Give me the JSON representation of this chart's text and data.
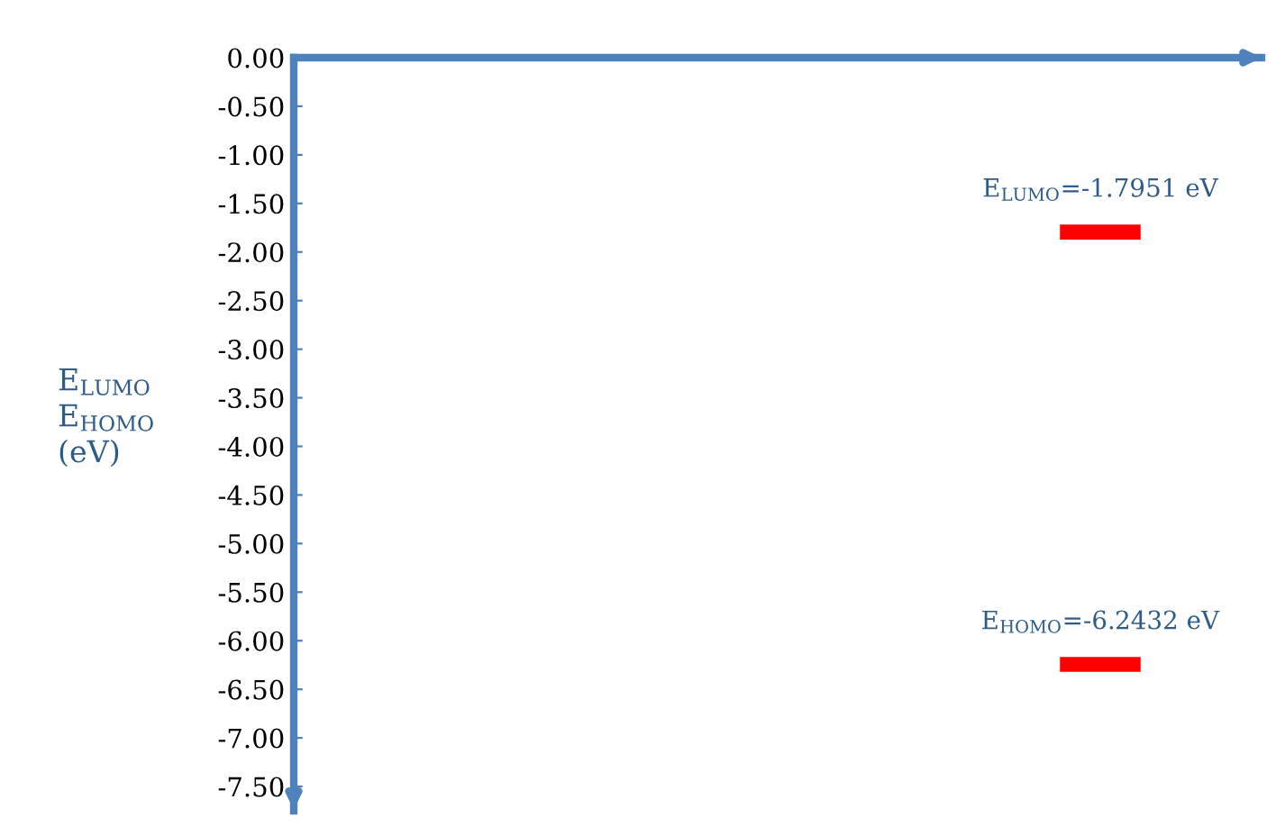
{
  "chart_data": {
    "type": "line",
    "ylabel": "E$_{LUMO}$\nE$_{HOMO}$\n(eV)",
    "categories": [
      null,
      null,
      null,
      null,
      null,
      null,
      null,
      null,
      null,
      null,
      null,
      null
    ],
    "series": [
      {
        "color": "#ff0000",
        "values": [
          null,
          null,
          null,
          null,
          null,
          null,
          null,
          null,
          null,
          -1.7951,
          -1.7951,
          null
        ],
        "value_labels": [
          null,
          null,
          null,
          null,
          null,
          null,
          null,
          null,
          null,
          "E$_{LUMO}$=-1.7951 eV",
          null,
          null
        ]
      },
      {
        "color": "#ff0000",
        "values": [
          null,
          null,
          null,
          null,
          null,
          null,
          null,
          null,
          null,
          -6.2432,
          -6.2432,
          null
        ],
        "value_labels": [
          null,
          null,
          null,
          null,
          null,
          null,
          null,
          null,
          null,
          "E$_{HOMO}$=-6.2432 eV",
          null,
          null
        ]
      }
    ],
    "ylim": [
      -7.75,
      0
    ],
    "yticks": [
      {
        "value": 0,
        "label": "0.00"
      },
      {
        "value": -0.5,
        "label": "-0.50"
      },
      {
        "value": -1,
        "label": "-1.00"
      },
      {
        "value": -1.5,
        "label": "-1.50"
      },
      {
        "value": -2,
        "label": "-2.00"
      },
      {
        "value": -2.5,
        "label": "-2.50"
      },
      {
        "value": -3,
        "label": "-3.00"
      },
      {
        "value": -3.5,
        "label": "-3.50"
      },
      {
        "value": -4,
        "label": "-4.00"
      },
      {
        "value": -4.5,
        "label": "-4.50"
      },
      {
        "value": -5,
        "label": "-5.00"
      },
      {
        "value": -5.5,
        "label": "-5.50"
      },
      {
        "value": -6,
        "label": "-6.00"
      },
      {
        "value": -6.5,
        "label": "-6.50"
      },
      {
        "value": -7,
        "label": "-7.00"
      },
      {
        "value": -7.5,
        "label": "-7.50"
      }
    ],
    "tick_labels": "y",
    "grid": false,
    "legend": false,
    "line_style": "solid",
    "marker": "none"
  }
}
